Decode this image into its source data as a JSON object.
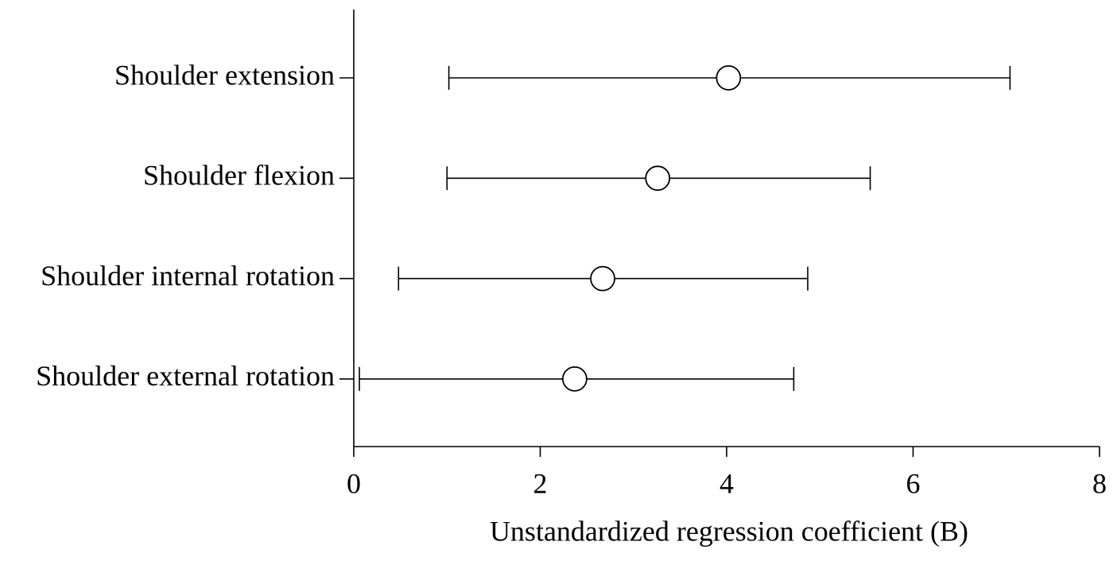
{
  "chart_data": {
    "type": "forest",
    "x_label": "Unstandardized regression coefficient (B)",
    "categories": [
      "Shoulder extension",
      "Shoulder flexion",
      "Shoulder internal rotation",
      "Shoulder external rotation"
    ],
    "values": [
      4.02,
      3.26,
      2.67,
      2.37
    ],
    "lower": [
      1.02,
      1.0,
      0.48,
      0.06
    ],
    "upper": [
      7.04,
      5.54,
      4.87,
      4.72
    ],
    "color": "#000000",
    "xlim": [
      0,
      8
    ],
    "xticks": [
      0,
      2,
      4,
      6,
      8
    ],
    "grid": false
  }
}
